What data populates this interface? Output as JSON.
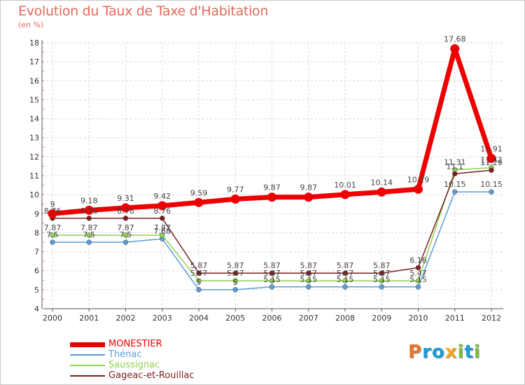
{
  "chart_data": {
    "type": "line",
    "title": "Evolution du Taux de Taxe d'Habitation",
    "unit_label": "(en %)",
    "x": [
      "2000",
      "2001",
      "2002",
      "2003",
      "2004",
      "2005",
      "2006",
      "2007",
      "2008",
      "2009",
      "2010",
      "2011",
      "2012"
    ],
    "ylim": [
      4,
      18
    ],
    "yticks": [
      4,
      5,
      6,
      7,
      8,
      9,
      10,
      11,
      12,
      13,
      14,
      15,
      16,
      17,
      18
    ],
    "grid": "dashed",
    "legend_position": "bottom-left",
    "series": [
      {
        "name": "MONESTIER",
        "color": "#ee0000",
        "width": 7,
        "marker_r": 6.5,
        "values": [
          9.0,
          9.18,
          9.31,
          9.42,
          9.59,
          9.77,
          9.87,
          9.87,
          10.01,
          10.14,
          10.29,
          17.68,
          11.91
        ],
        "labels": [
          "9",
          "9.18",
          "9.31",
          "9.42",
          "9.59",
          "9.77",
          "9.87",
          "9.87",
          "10.01",
          "10.14",
          "10.29",
          "17.68",
          "11.91"
        ]
      },
      {
        "name": "Thénac",
        "color": "#5b9bd5",
        "width": 1.5,
        "marker_r": 3.5,
        "values": [
          7.5,
          7.5,
          7.5,
          7.68,
          5.0,
          5.0,
          5.15,
          5.15,
          5.15,
          5.15,
          5.15,
          10.15,
          10.15
        ],
        "labels": [
          "7.5",
          "7.5",
          "7.5",
          "7.68",
          "5",
          "5",
          "5.15",
          "5.15",
          "5.15",
          "5.15",
          "5.15",
          "10.15",
          "10.15"
        ]
      },
      {
        "name": "Saussignac",
        "color": "#8fd14f",
        "width": 1.5,
        "marker_r": 3.5,
        "values": [
          7.87,
          7.87,
          7.87,
          7.87,
          5.47,
          5.47,
          5.47,
          5.47,
          5.47,
          5.47,
          5.47,
          11.31,
          11.42
        ],
        "labels": [
          "7.87",
          "7.87",
          "7.87",
          "7.87",
          "5.47",
          "5.47",
          "5.47",
          "5.47",
          "5.47",
          "5.47",
          "5.47",
          "11.31",
          "11.42"
        ]
      },
      {
        "name": "Gageac-et-Rouillac",
        "color": "#7b1f1f",
        "width": 1.5,
        "marker_r": 3.5,
        "values": [
          8.76,
          8.76,
          8.76,
          8.76,
          5.87,
          5.87,
          5.87,
          5.87,
          5.87,
          5.87,
          6.16,
          11.1,
          11.29
        ],
        "labels": [
          "8.76",
          "8.76",
          "8.76",
          "8.76",
          "5.87",
          "5.87",
          "5.87",
          "5.87",
          "5.87",
          "5.87",
          "6.16",
          "11.1",
          "11.29"
        ]
      }
    ],
    "logo": {
      "letters": [
        "P",
        "r",
        "o",
        "x",
        "i",
        "t",
        "i"
      ],
      "colors": [
        "#e8742a",
        "#1d9bd8",
        "#1d9bd8",
        "#f4a51c",
        "#7abf3b",
        "#1d9bd8",
        "#7abf3b"
      ]
    }
  }
}
